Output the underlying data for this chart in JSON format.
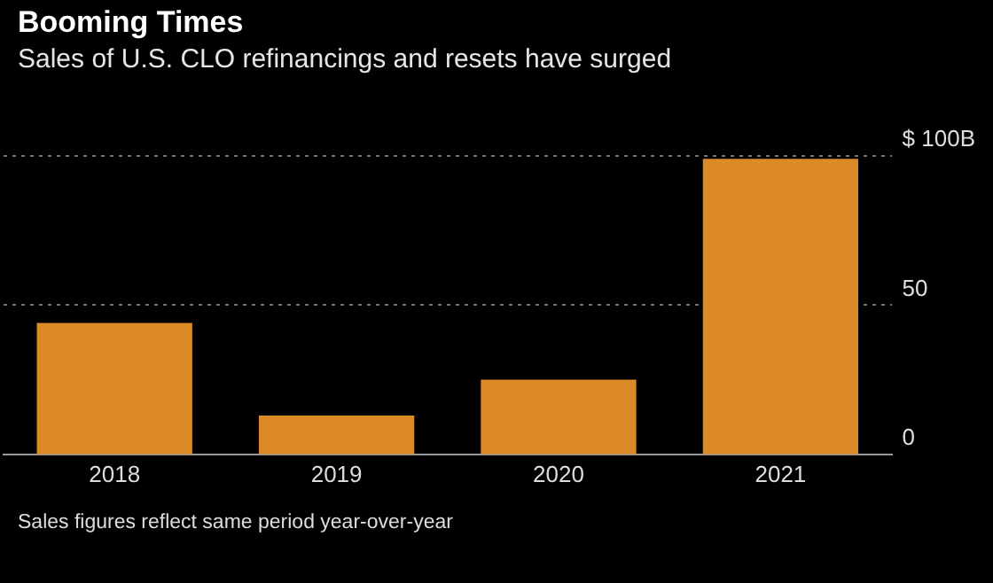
{
  "chart_data": {
    "type": "bar",
    "title": "Booming Times",
    "subtitle": "Sales of U.S. CLO refinancings and resets have surged",
    "categories": [
      "2018",
      "2019",
      "2020",
      "2021"
    ],
    "values": [
      44,
      13,
      25,
      99
    ],
    "color": "#dc8a27",
    "ylim": [
      0,
      100
    ],
    "yticks": [
      0,
      50,
      {
        "value": 100,
        "label": "$ 100B"
      }
    ],
    "grid": "y",
    "annotations": [
      "Sales figures reflect same period year-over-year"
    ]
  }
}
